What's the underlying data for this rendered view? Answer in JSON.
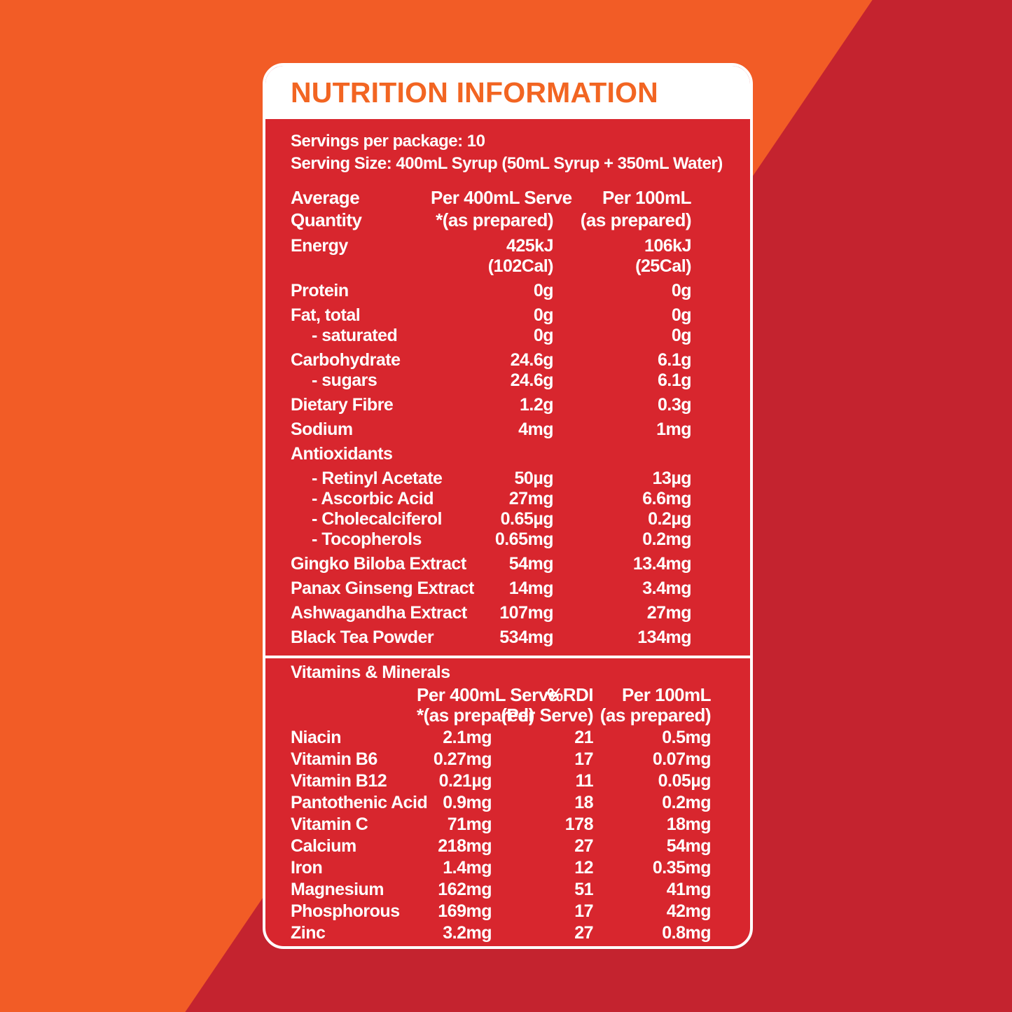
{
  "colors": {
    "background_orange": "#F25C26",
    "background_red": "#C4232F",
    "panel_red": "#D8262E",
    "title_orange": "#F26522",
    "text_white": "#FFFFFF"
  },
  "panel": {
    "title": "NUTRITION INFORMATION",
    "servings_line": "Servings per package: 10",
    "serving_size_line": "Serving Size: 400mL Syrup (50mL Syrup + 350mL Water)"
  },
  "main_table": {
    "header": {
      "col1": [
        "Average",
        "Quantity"
      ],
      "col2": [
        "Per 400mL Serve",
        "*(as prepared)"
      ],
      "col3": [
        "Per 100mL",
        "(as prepared)"
      ]
    },
    "rows": [
      {
        "label": "Energy",
        "per_serve": "425kJ",
        "per_100ml": "106kJ"
      },
      {
        "label": "",
        "per_serve": "(102Cal)",
        "per_100ml": "(25Cal)",
        "sub": true
      },
      {
        "label": "Protein",
        "per_serve": "0g",
        "per_100ml": "0g"
      },
      {
        "label": "Fat, total",
        "per_serve": "0g",
        "per_100ml": "0g"
      },
      {
        "label": "- saturated",
        "per_serve": "0g",
        "per_100ml": "0g",
        "indent": true,
        "sub": true
      },
      {
        "label": "Carbohydrate",
        "per_serve": "24.6g",
        "per_100ml": "6.1g"
      },
      {
        "label": "- sugars",
        "per_serve": "24.6g",
        "per_100ml": "6.1g",
        "indent": true,
        "sub": true
      },
      {
        "label": "Dietary Fibre",
        "per_serve": "1.2g",
        "per_100ml": "0.3g"
      },
      {
        "label": "Sodium",
        "per_serve": "4mg",
        "per_100ml": "1mg"
      },
      {
        "label": "Antioxidants",
        "per_serve": "",
        "per_100ml": ""
      },
      {
        "label": "- Retinyl Acetate",
        "per_serve": "50µg",
        "per_100ml": "13µg",
        "indent": true
      },
      {
        "label": "- Ascorbic Acid",
        "per_serve": "27mg",
        "per_100ml": "6.6mg",
        "indent": true,
        "sub": true
      },
      {
        "label": "- Cholecalciferol",
        "per_serve": "0.65µg",
        "per_100ml": "0.2µg",
        "indent": true,
        "sub": true
      },
      {
        "label": "- Tocopherols",
        "per_serve": "0.65mg",
        "per_100ml": "0.2mg",
        "indent": true,
        "sub": true
      },
      {
        "label": "Gingko Biloba Extract",
        "per_serve": "54mg",
        "per_100ml": "13.4mg"
      },
      {
        "label": "Panax Ginseng Extract",
        "per_serve": "14mg",
        "per_100ml": "3.4mg"
      },
      {
        "label": "Ashwagandha Extract",
        "per_serve": "107mg",
        "per_100ml": "27mg"
      },
      {
        "label": "Black Tea Powder",
        "per_serve": "534mg",
        "per_100ml": "134mg"
      }
    ]
  },
  "vitamins_table": {
    "title": "Vitamins & Minerals",
    "header": {
      "col2": [
        "Per 400mL Serve",
        "*(as prepared)"
      ],
      "col3": [
        "%RDI",
        "(Per Serve)"
      ],
      "col4": [
        "Per 100mL",
        "(as prepared)"
      ]
    },
    "rows": [
      {
        "label": "Niacin",
        "per_serve": "2.1mg",
        "rdi": "21",
        "per_100ml": "0.5mg"
      },
      {
        "label": "Vitamin B6",
        "per_serve": "0.27mg",
        "rdi": "17",
        "per_100ml": "0.07mg"
      },
      {
        "label": "Vitamin B12",
        "per_serve": "0.21µg",
        "rdi": "11",
        "per_100ml": "0.05µg"
      },
      {
        "label": "Pantothenic Acid",
        "per_serve": "0.9mg",
        "rdi": "18",
        "per_100ml": "0.2mg"
      },
      {
        "label": "Vitamin C",
        "per_serve": "71mg",
        "rdi": "178",
        "per_100ml": "18mg"
      },
      {
        "label": "Calcium",
        "per_serve": "218mg",
        "rdi": "27",
        "per_100ml": "54mg"
      },
      {
        "label": "Iron",
        "per_serve": "1.4mg",
        "rdi": "12",
        "per_100ml": "0.35mg"
      },
      {
        "label": "Magnesium",
        "per_serve": "162mg",
        "rdi": "51",
        "per_100ml": "41mg"
      },
      {
        "label": "Phosphorous",
        "per_serve": "169mg",
        "rdi": "17",
        "per_100ml": "42mg"
      },
      {
        "label": "Zinc",
        "per_serve": "3.2mg",
        "rdi": "27",
        "per_100ml": "0.8mg"
      }
    ]
  }
}
